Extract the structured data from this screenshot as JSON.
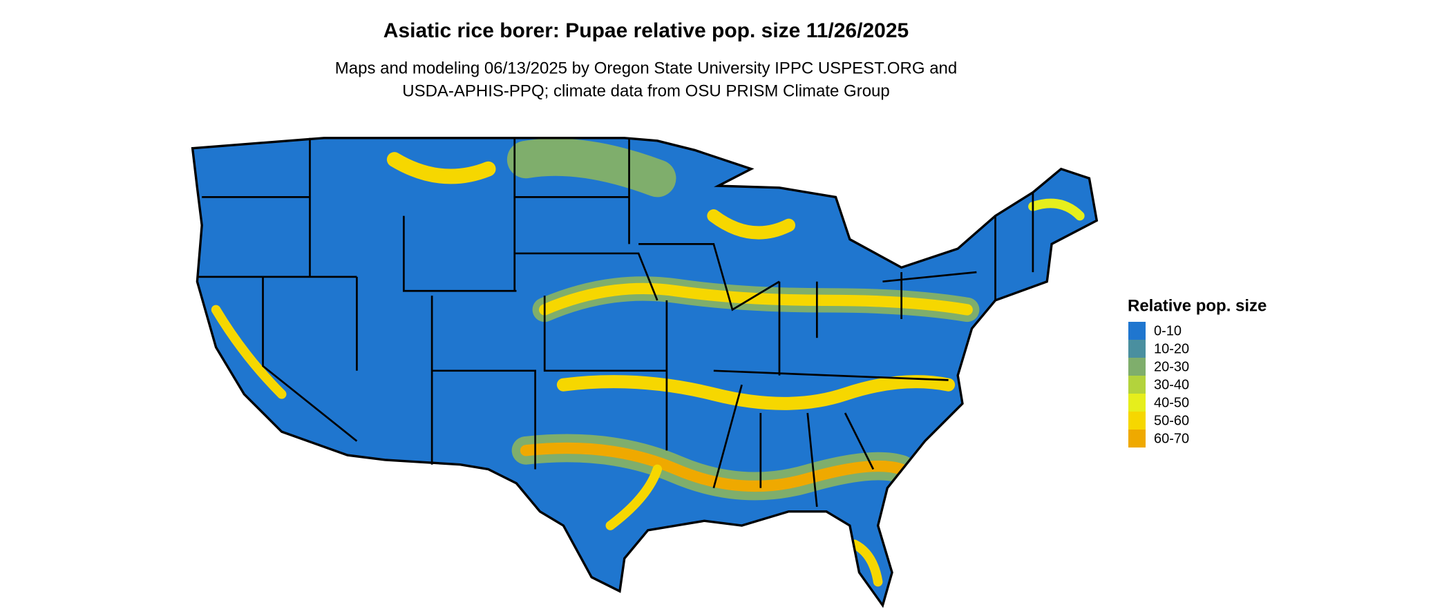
{
  "title": "Asiatic rice borer: Pupae relative pop. size 11/26/2025",
  "subtitle": [
    "Maps and modeling 06/13/2025 by Oregon State University IPPC USPEST.ORG and",
    "USDA-APHIS-PPQ; climate data from OSU PRISM Climate Group"
  ],
  "legend": {
    "title": "Relative pop. size",
    "items": [
      {
        "label": "0-10",
        "color": "#1f76cf"
      },
      {
        "label": "10-20",
        "color": "#4a8f9f"
      },
      {
        "label": "20-30",
        "color": "#7fae6c"
      },
      {
        "label": "30-40",
        "color": "#b3d33c"
      },
      {
        "label": "40-50",
        "color": "#e6ee1c"
      },
      {
        "label": "50-60",
        "color": "#f6d700"
      },
      {
        "label": "60-70",
        "color": "#efa900"
      }
    ]
  }
}
